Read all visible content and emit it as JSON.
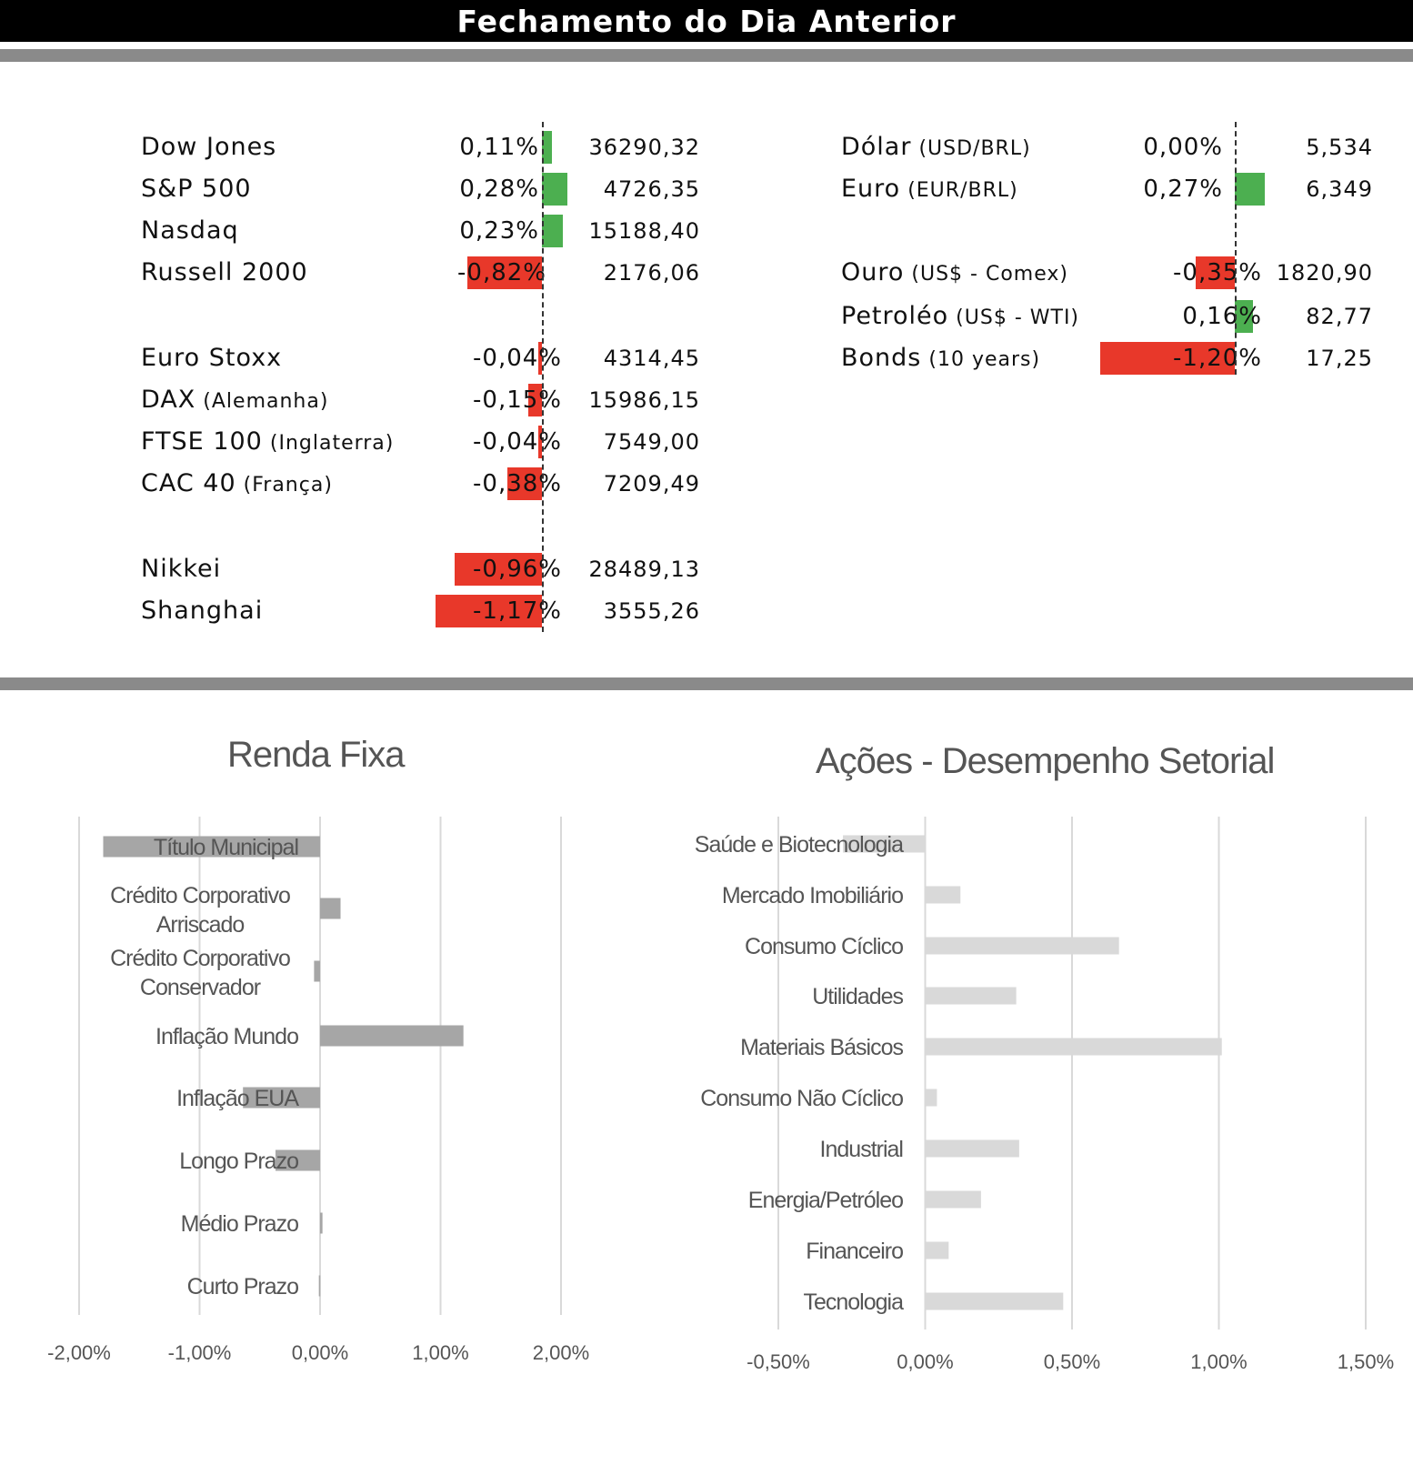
{
  "header": {
    "title": "Fechamento do Dia Anterior"
  },
  "colors": {
    "positive": "#4caf50",
    "negative": "#e8382a",
    "fixed_bar": "#a6a6a6",
    "sector_bar": "#d9d9d9",
    "grid": "#d9d9d9"
  },
  "markets_left": [
    {
      "name": "Dow Jones",
      "sub": "",
      "pct": "0,11%",
      "change": 0.11,
      "value": "36290,32"
    },
    {
      "name": "S&P 500",
      "sub": "",
      "pct": "0,28%",
      "change": 0.28,
      "value": "4726,35"
    },
    {
      "name": "Nasdaq",
      "sub": "",
      "pct": "0,23%",
      "change": 0.23,
      "value": "15188,40"
    },
    {
      "name": "Russell 2000",
      "sub": "",
      "pct": "-0,82%",
      "change": -0.82,
      "value": "2176,06"
    },
    {
      "name": "Euro Stoxx",
      "sub": "",
      "pct": "-0,04%",
      "change": -0.04,
      "value": "4314,45"
    },
    {
      "name": "DAX",
      "sub": "(Alemanha)",
      "pct": "-0,15%",
      "change": -0.15,
      "value": "15986,15"
    },
    {
      "name": "FTSE 100",
      "sub": "(Inglaterra)",
      "pct": "-0,04%",
      "change": -0.04,
      "value": "7549,00"
    },
    {
      "name": "CAC 40",
      "sub": "(França)",
      "pct": "-0,38%",
      "change": -0.38,
      "value": "7209,49"
    },
    {
      "name": "Nikkei",
      "sub": "",
      "pct": "-0,96%",
      "change": -0.96,
      "value": "28489,13"
    },
    {
      "name": "Shanghai",
      "sub": "",
      "pct": "-1,17%",
      "change": -1.17,
      "value": "3555,26"
    }
  ],
  "markets_right": [
    {
      "name": "Dólar",
      "sub": "(USD/BRL)",
      "pct": "0,00%",
      "change": 0.0,
      "value": "5,534"
    },
    {
      "name": "Euro",
      "sub": "(EUR/BRL)",
      "pct": "0,27%",
      "change": 0.27,
      "value": "6,349"
    },
    {
      "name": "Ouro",
      "sub": "(US$ - Comex)",
      "pct": "-0,35%",
      "change": -0.35,
      "value": "1820,90"
    },
    {
      "name": "Petroléo",
      "sub": "(US$ - WTI)",
      "pct": "0,16%",
      "change": 0.16,
      "value": "82,77"
    },
    {
      "name": "Bonds",
      "sub": "(10 years)",
      "pct": "-1,20%",
      "change": -1.2,
      "value": "17,25"
    }
  ],
  "chart_data": [
    {
      "type": "bar",
      "orientation": "horizontal",
      "title": "Renda Fixa",
      "categories": [
        "Título Municipal",
        "Crédito Corporativo Arriscado",
        "Crédito Corporativo Conservador",
        "Inflação Mundo",
        "Inflação EUA",
        "Longo Prazo",
        "Médio Prazo",
        "Curto Prazo"
      ],
      "values": [
        -1.8,
        0.17,
        -0.05,
        1.19,
        -0.64,
        -0.37,
        0.02,
        -0.01
      ],
      "xlim": [
        -2.0,
        2.0
      ],
      "ticks": [
        "-2,00%",
        "-1,00%",
        "0,00%",
        "1,00%",
        "2,00%"
      ],
      "grid": true
    },
    {
      "type": "bar",
      "orientation": "horizontal",
      "title": "Ações - Desempenho Setorial",
      "categories": [
        "Saúde e Biotecnologia",
        "Mercado Imobiliário",
        "Consumo Cíclico",
        "Utilidades",
        "Materiais Básicos",
        "Consumo Não Cíclico",
        "Industrial",
        "Energia/Petróleo",
        "Financeiro",
        "Tecnologia"
      ],
      "values": [
        -0.28,
        0.12,
        0.66,
        0.31,
        1.01,
        0.04,
        0.32,
        0.19,
        0.08,
        0.47
      ],
      "xlim": [
        -0.5,
        1.5
      ],
      "ticks": [
        "-0,50%",
        "0,00%",
        "0,50%",
        "1,00%",
        "1,50%"
      ],
      "grid": true
    }
  ]
}
